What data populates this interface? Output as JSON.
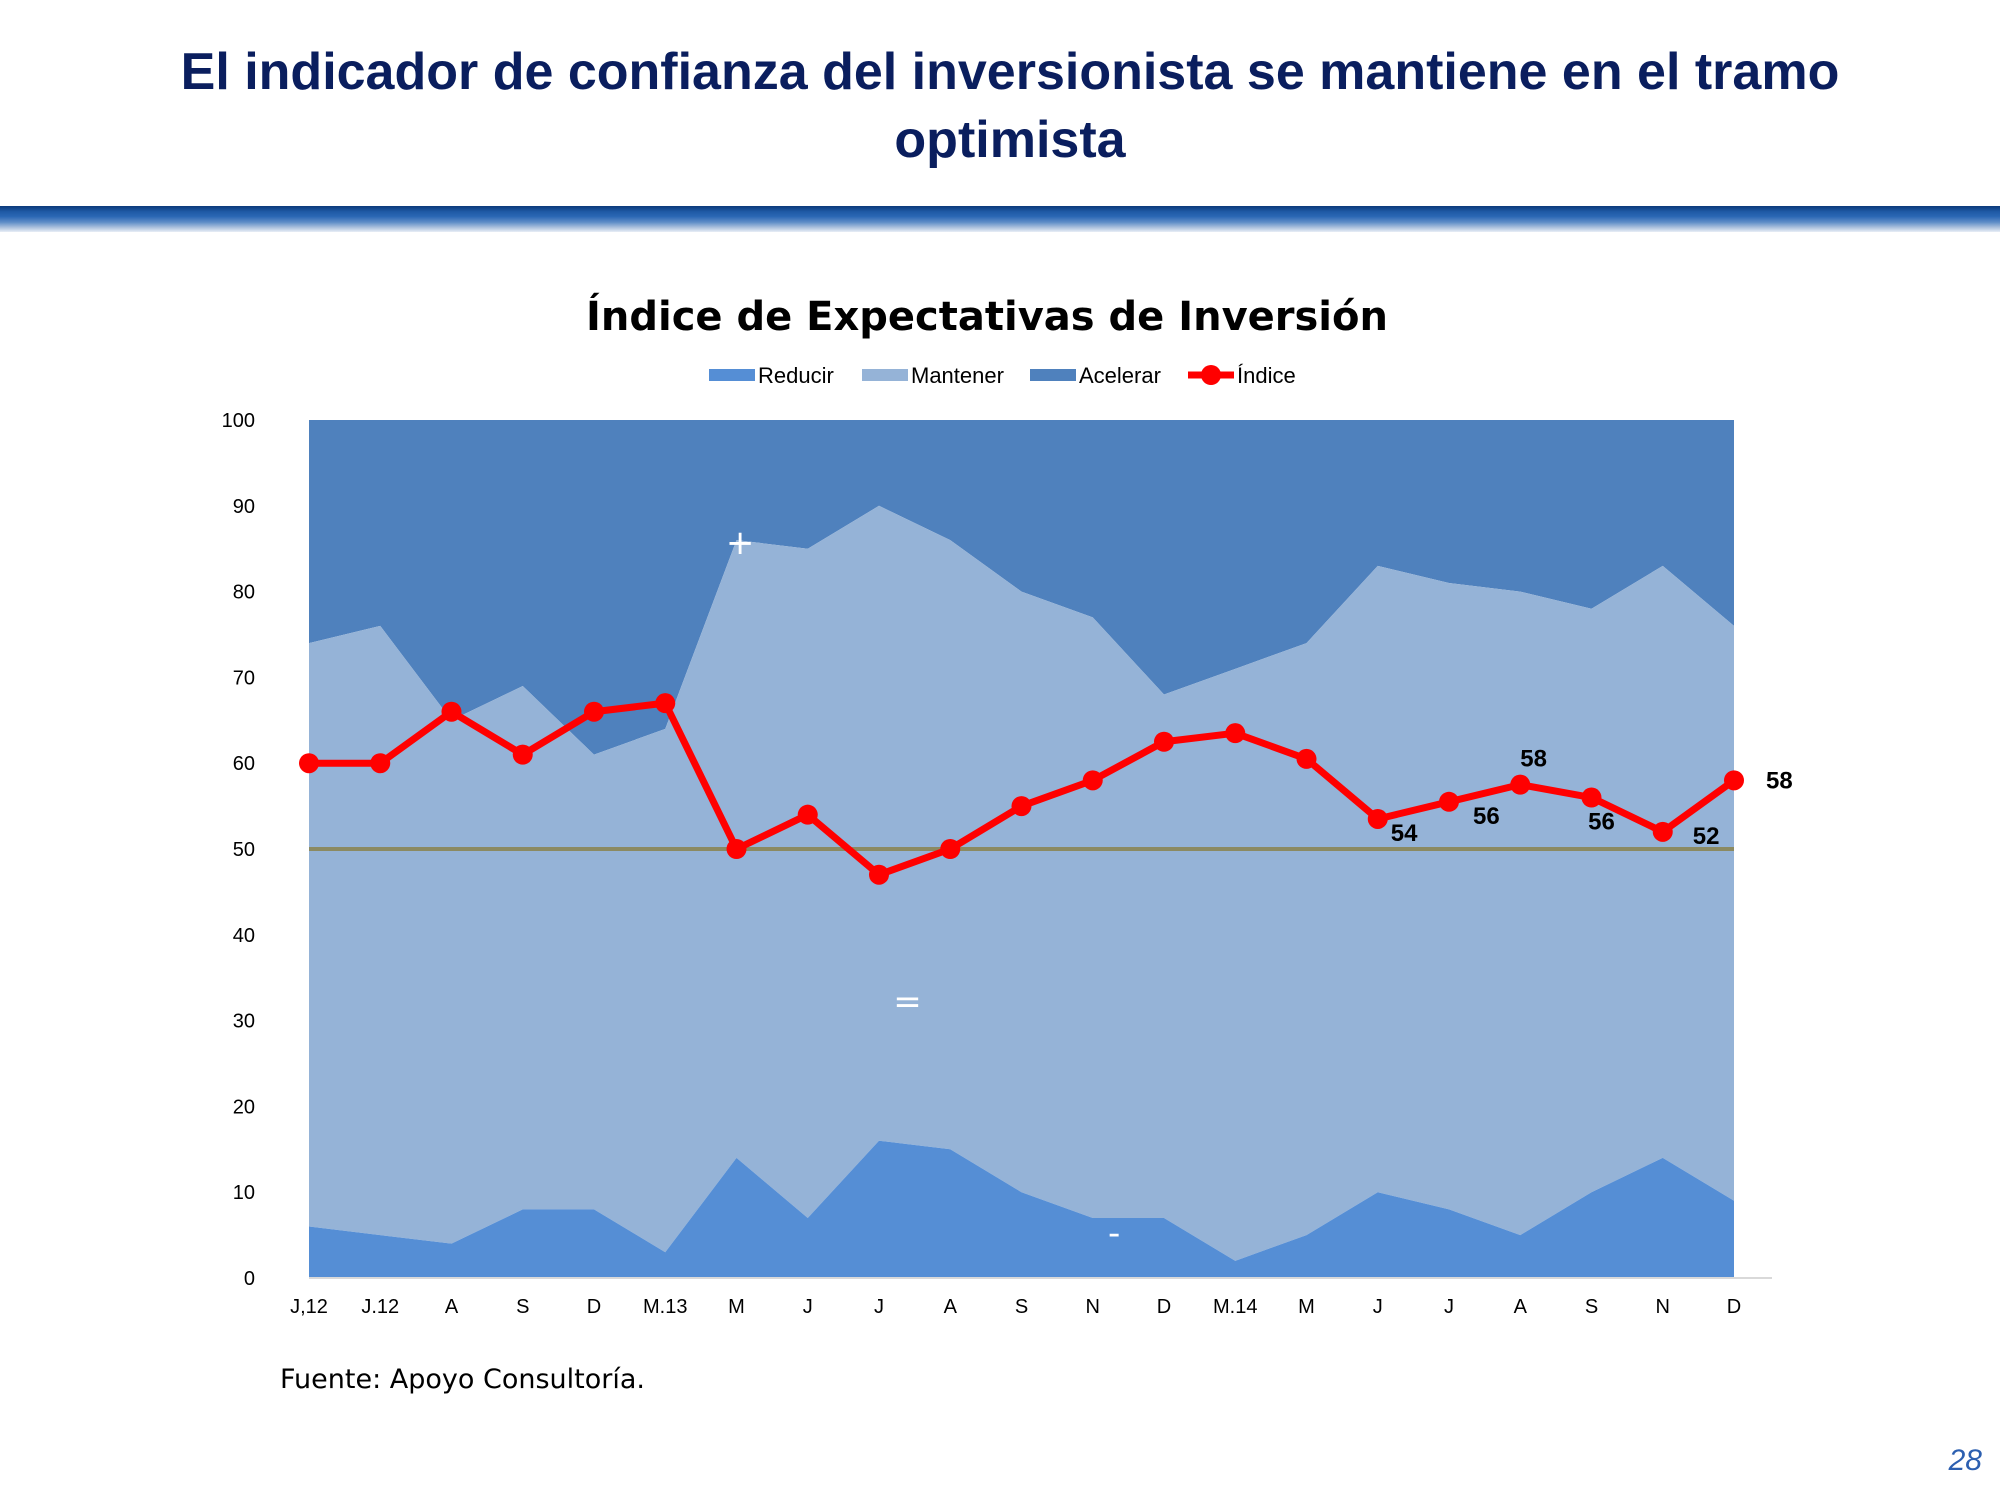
{
  "slide": {
    "title": "El indicador de confianza del inversionista se mantiene en el tramo optimista",
    "source": "Fuente: Apoyo Consultoría.",
    "page_number": "28"
  },
  "colors": {
    "reducir": "#558ed5",
    "mantener": "#95b3d7",
    "acelerar": "#4f81bd",
    "indice": "#ff0000",
    "reference_line": "#8b8a62",
    "title": "#0a1e5e"
  },
  "chart_data": {
    "type": "area",
    "title": "Índice de Expectativas de Inversión",
    "legend_position": "top",
    "categories": [
      "J,12",
      "J.12",
      "A",
      "S",
      "D",
      "M.13",
      "M",
      "J",
      "J",
      "A",
      "S",
      "N",
      "D",
      "M.14",
      "M",
      "J",
      "J",
      "A",
      "S",
      "N",
      "D"
    ],
    "ylim": [
      0,
      100
    ],
    "yticks": [
      0,
      10,
      20,
      30,
      40,
      50,
      60,
      70,
      80,
      90,
      100
    ],
    "grid": false,
    "series": [
      {
        "name": "Reducir",
        "kind": "stacked-area",
        "values": [
          6,
          5,
          4,
          8,
          8,
          3,
          14,
          7,
          16,
          15,
          10,
          7,
          7,
          2,
          5,
          10,
          8,
          5,
          10,
          14,
          9
        ]
      },
      {
        "name": "Mantener",
        "kind": "stacked-area",
        "values": [
          68,
          71,
          61,
          61,
          53,
          61,
          72,
          78,
          74,
          71,
          70,
          70,
          61,
          69,
          69,
          73,
          73,
          75,
          68,
          69,
          67
        ]
      },
      {
        "name": "Acelerar",
        "kind": "stacked-area",
        "values": [
          26,
          24,
          35,
          31,
          39,
          36,
          14,
          15,
          10,
          14,
          20,
          23,
          32,
          29,
          26,
          17,
          19,
          20,
          22,
          17,
          24
        ]
      },
      {
        "name": "Índice",
        "kind": "line",
        "values": [
          60,
          60,
          66,
          61,
          66,
          67,
          50,
          54,
          47,
          50,
          55,
          58,
          62.5,
          63.5,
          60.5,
          53.5,
          55.5,
          57.5,
          56,
          52,
          58
        ]
      }
    ],
    "reference_line": 50,
    "data_labels": [
      {
        "index": 15,
        "text": "54"
      },
      {
        "index": 16,
        "text": "56"
      },
      {
        "index": 17,
        "text": "58"
      },
      {
        "index": 18,
        "text": "56"
      },
      {
        "index": 19,
        "text": "52"
      },
      {
        "index": 20,
        "text": "58"
      }
    ],
    "annotations": [
      {
        "text": "+",
        "category_index": 6.05,
        "y": 85.5
      },
      {
        "text": "=",
        "category_index": 8.4,
        "y": 32
      },
      {
        "text": "-",
        "category_index": 11.3,
        "y": 5
      }
    ]
  }
}
